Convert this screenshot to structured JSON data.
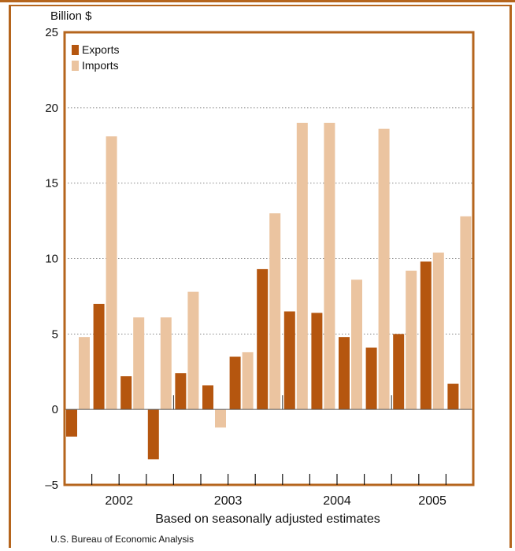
{
  "colors": {
    "exports": "#b5560f",
    "imports": "#ebc4a0",
    "frame": "#b5651d",
    "grid": "#888888"
  },
  "chart_data": {
    "type": "bar",
    "ylabel": "Billion $",
    "xlabel": "Based on seasonally adjusted estimates",
    "source": "U.S. Bureau of Economic Analysis",
    "ylim": [
      -5,
      25
    ],
    "yticks": [
      25,
      20,
      15,
      10,
      5,
      0,
      "–5"
    ],
    "year_labels": [
      "2002",
      "2003",
      "2004",
      "2005"
    ],
    "grid": "dotted horizontal",
    "legend_position": "top-left",
    "categories": [
      "2002 Q1",
      "2002 Q2",
      "2002 Q3",
      "2002 Q4",
      "2003 Q1",
      "2003 Q2",
      "2003 Q3",
      "2003 Q4",
      "2004 Q1",
      "2004 Q2",
      "2004 Q3",
      "2004 Q4",
      "2005 Q1",
      "2005 Q2",
      "2005 Q3"
    ],
    "series": [
      {
        "name": "Exports",
        "values": [
          -1.8,
          7.0,
          2.2,
          -3.3,
          2.4,
          1.6,
          3.5,
          9.3,
          6.5,
          6.4,
          4.8,
          4.1,
          5.0,
          9.8,
          1.7
        ]
      },
      {
        "name": "Imports",
        "values": [
          4.8,
          18.1,
          6.1,
          6.1,
          7.8,
          -1.2,
          3.8,
          13.0,
          19.0,
          19.0,
          8.6,
          18.6,
          9.2,
          10.4,
          12.8
        ]
      }
    ]
  }
}
